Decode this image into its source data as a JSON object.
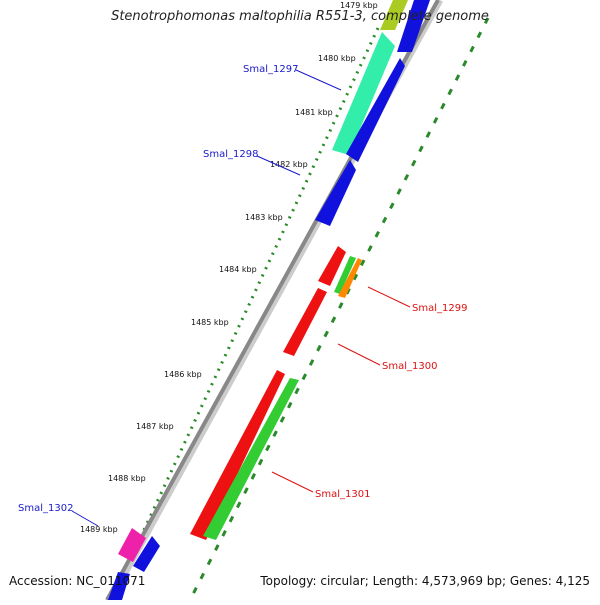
{
  "title": "Stenotrophomonas maltophilia R551-3, complete genome",
  "footer": {
    "accession": "Accession: NC_011071",
    "summary": "Topology: circular; Length: 4,573,969 bp; Genes: 4,125"
  },
  "colors": {
    "backbone": "#888888",
    "tick_dots": "#2a8a2a",
    "blue_label": "#1a1acc",
    "red_label": "#dd1111"
  },
  "scale_labels": [
    {
      "text": "1479 kbp"
    },
    {
      "text": "1480 kbp"
    },
    {
      "text": "1481 kbp"
    },
    {
      "text": "1482 kbp"
    },
    {
      "text": "1483 kbp"
    },
    {
      "text": "1484 kbp"
    },
    {
      "text": "1485 kbp"
    },
    {
      "text": "1486 kbp"
    },
    {
      "text": "1487 kbp"
    },
    {
      "text": "1488 kbp"
    },
    {
      "text": "1489 kbp"
    }
  ],
  "gene_labels": [
    {
      "text": "Smal_1297",
      "color": "#1a1acc"
    },
    {
      "text": "Smal_1298",
      "color": "#1a1acc"
    },
    {
      "text": "Smal_1299",
      "color": "#dd1111"
    },
    {
      "text": "Smal_1300",
      "color": "#dd1111"
    },
    {
      "text": "Smal_1301",
      "color": "#dd1111"
    },
    {
      "text": "Smal_1302",
      "color": "#1a1acc"
    }
  ]
}
